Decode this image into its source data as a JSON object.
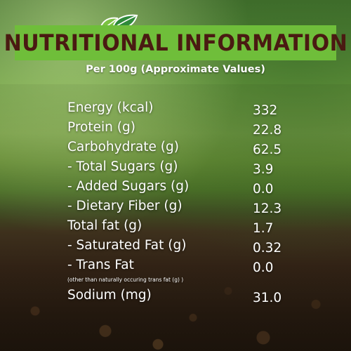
{
  "header": {
    "title": "NUTRITIONAL INFORMATION",
    "subtitle": "Per 100g (Approximate Values)",
    "logo_icon": "leaf-logo-icon",
    "title_bg_color": "#6fbe3a",
    "title_text_color": "#4a1a12"
  },
  "nutrients": [
    {
      "label": "Energy (kcal)",
      "value": "332"
    },
    {
      "label": "Protein (g)",
      "value": "22.8"
    },
    {
      "label": "Carbohydrate (g)",
      "value": "62.5"
    },
    {
      "label": "- Total Sugars (g)",
      "value": "3.9"
    },
    {
      "label": "- Added Sugars (g)",
      "value": "0.0"
    },
    {
      "label": "- Dietary Fiber (g)",
      "value": "12.3"
    },
    {
      "label": "Total fat (g)",
      "value": "1.7"
    },
    {
      "label": "- Saturated Fat (g)",
      "value": "0.32"
    },
    {
      "label": "- Trans Fat",
      "value": "0.0"
    },
    {
      "label": "Sodium (mg)",
      "value": "31.0"
    }
  ],
  "trans_fat_note": "(other than naturally occuring trans fat (g) )"
}
